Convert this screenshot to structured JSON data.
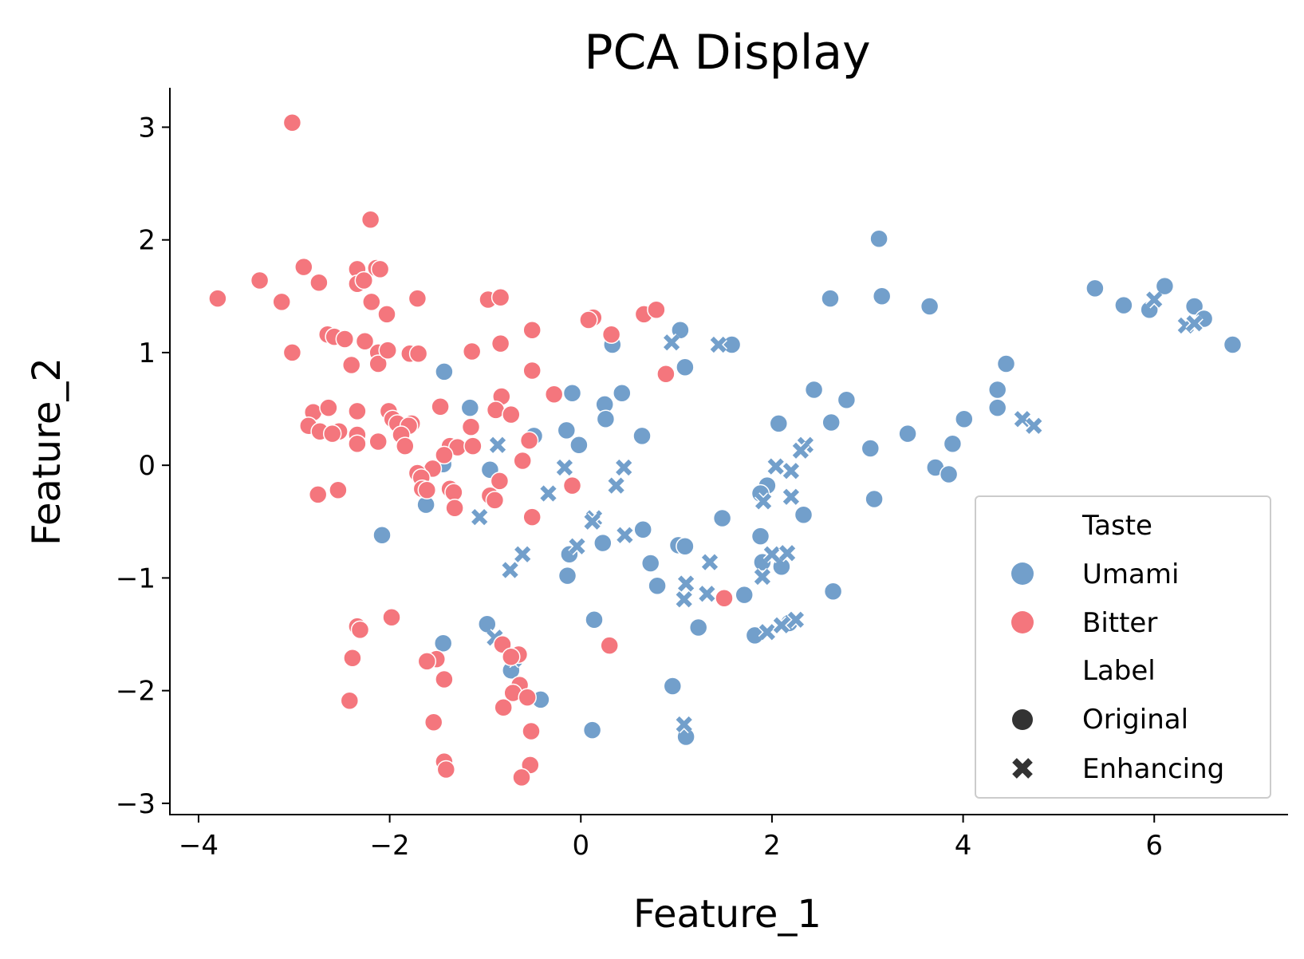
{
  "chart_data": {
    "type": "scatter",
    "title": "PCA Display",
    "xlabel": "Feature_1",
    "ylabel": "Feature_2",
    "xlim": [
      -4.3,
      7.4
    ],
    "ylim": [
      -3.1,
      3.35
    ],
    "x_ticks": [
      {
        "value": -4,
        "label": "−4"
      },
      {
        "value": -2,
        "label": "−2"
      },
      {
        "value": 0,
        "label": "0"
      },
      {
        "value": 2,
        "label": "2"
      },
      {
        "value": 4,
        "label": "4"
      },
      {
        "value": 6,
        "label": "6"
      }
    ],
    "y_ticks": [
      {
        "value": 3,
        "label": "3"
      },
      {
        "value": 2,
        "label": "2"
      },
      {
        "value": 1,
        "label": "1"
      },
      {
        "value": 0,
        "label": "0"
      },
      {
        "value": -1,
        "label": "−1"
      },
      {
        "value": -2,
        "label": "−2"
      },
      {
        "value": -3,
        "label": "−3"
      }
    ],
    "grid": false,
    "legend_position": "lower-right",
    "legend": {
      "hue_title": "Taste",
      "style_title": "Label",
      "hue_entries": [
        {
          "label": "Umami",
          "color": "#729fcb"
        },
        {
          "label": "Bitter",
          "color": "#f4767d"
        }
      ],
      "style_entries": [
        {
          "label": "Original",
          "marker": "circle"
        },
        {
          "label": "Enhancing",
          "marker": "x"
        }
      ]
    },
    "series": [
      {
        "name": "Umami",
        "label": "Original",
        "color": "#729fcb",
        "marker": "circle",
        "points": [
          [
            3.12,
            2.01
          ],
          [
            5.38,
            1.57
          ],
          [
            6.11,
            1.59
          ],
          [
            5.68,
            1.42
          ],
          [
            5.95,
            1.38
          ],
          [
            6.42,
            1.41
          ],
          [
            6.52,
            1.3
          ],
          [
            6.82,
            1.07
          ],
          [
            2.61,
            1.48
          ],
          [
            3.15,
            1.5
          ],
          [
            3.65,
            1.41
          ],
          [
            1.04,
            1.2
          ],
          [
            1.58,
            1.07
          ],
          [
            1.09,
            0.87
          ],
          [
            0.33,
            1.07
          ],
          [
            -1.43,
            0.83
          ],
          [
            -0.09,
            0.64
          ],
          [
            0.43,
            0.64
          ],
          [
            -1.16,
            0.51
          ],
          [
            0.25,
            0.54
          ],
          [
            0.26,
            0.41
          ],
          [
            -0.15,
            0.31
          ],
          [
            -0.02,
            0.18
          ],
          [
            -0.49,
            0.26
          ],
          [
            0.64,
            0.26
          ],
          [
            2.07,
            0.37
          ],
          [
            2.44,
            0.67
          ],
          [
            2.62,
            0.38
          ],
          [
            2.78,
            0.58
          ],
          [
            3.03,
            0.15
          ],
          [
            3.42,
            0.28
          ],
          [
            4.36,
            0.67
          ],
          [
            4.45,
            0.9
          ],
          [
            4.36,
            0.51
          ],
          [
            4.01,
            0.41
          ],
          [
            3.89,
            0.19
          ],
          [
            3.71,
            -0.02
          ],
          [
            3.85,
            -0.08
          ],
          [
            3.07,
            -0.3
          ],
          [
            -1.44,
            0.01
          ],
          [
            -0.95,
            -0.04
          ],
          [
            -1.62,
            -0.35
          ],
          [
            -2.08,
            -0.62
          ],
          [
            1.95,
            -0.18
          ],
          [
            1.88,
            -0.25
          ],
          [
            2.33,
            -0.44
          ],
          [
            1.48,
            -0.47
          ],
          [
            0.65,
            -0.57
          ],
          [
            -0.12,
            -0.79
          ],
          [
            0.23,
            -0.69
          ],
          [
            1.88,
            -0.63
          ],
          [
            1.02,
            -0.71
          ],
          [
            1.09,
            -0.72
          ],
          [
            1.9,
            -0.86
          ],
          [
            2.1,
            -0.9
          ],
          [
            0.73,
            -0.87
          ],
          [
            -0.14,
            -0.98
          ],
          [
            0.8,
            -1.07
          ],
          [
            1.71,
            -1.15
          ],
          [
            0.14,
            -1.37
          ],
          [
            -0.98,
            -1.41
          ],
          [
            1.23,
            -1.44
          ],
          [
            2.64,
            -1.12
          ],
          [
            -1.44,
            -1.58
          ],
          [
            -0.73,
            -1.82
          ],
          [
            -0.42,
            -2.08
          ],
          [
            0.12,
            -2.35
          ],
          [
            0.96,
            -1.96
          ],
          [
            1.1,
            -2.41
          ],
          [
            1.82,
            -1.51
          ],
          [
            2.18,
            -1.4
          ]
        ]
      },
      {
        "name": "Umami",
        "label": "Enhancing",
        "color": "#729fcb",
        "marker": "x",
        "points": [
          [
            0.95,
            1.09
          ],
          [
            1.44,
            1.07
          ],
          [
            6.0,
            1.47
          ],
          [
            6.33,
            1.24
          ],
          [
            6.42,
            1.26
          ],
          [
            4.62,
            0.41
          ],
          [
            4.74,
            0.35
          ],
          [
            -0.87,
            0.18
          ],
          [
            2.35,
            0.18
          ],
          [
            2.3,
            0.13
          ],
          [
            0.45,
            -0.02
          ],
          [
            2.04,
            -0.01
          ],
          [
            -0.17,
            -0.02
          ],
          [
            2.2,
            -0.05
          ],
          [
            0.37,
            -0.18
          ],
          [
            -0.34,
            -0.25
          ],
          [
            2.2,
            -0.28
          ],
          [
            1.91,
            -0.32
          ],
          [
            -1.06,
            -0.46
          ],
          [
            0.14,
            -0.47
          ],
          [
            0.12,
            -0.5
          ],
          [
            0.46,
            -0.62
          ],
          [
            -0.04,
            -0.72
          ],
          [
            -0.61,
            -0.79
          ],
          [
            2.0,
            -0.79
          ],
          [
            2.16,
            -0.78
          ],
          [
            -0.74,
            -0.93
          ],
          [
            1.35,
            -0.86
          ],
          [
            1.9,
            -0.99
          ],
          [
            1.1,
            -1.05
          ],
          [
            1.32,
            -1.14
          ],
          [
            1.08,
            -1.19
          ],
          [
            -0.9,
            -1.53
          ],
          [
            1.95,
            -1.48
          ],
          [
            2.1,
            -1.42
          ],
          [
            2.25,
            -1.37
          ],
          [
            -0.7,
            -1.72
          ],
          [
            1.08,
            -2.3
          ]
        ]
      },
      {
        "name": "Bitter",
        "label": "Original",
        "color": "#f4767d",
        "marker": "circle",
        "points": [
          [
            -3.02,
            3.04
          ],
          [
            -2.2,
            2.18
          ],
          [
            -2.14,
            1.75
          ],
          [
            -2.1,
            1.74
          ],
          [
            -2.34,
            1.74
          ],
          [
            -2.9,
            1.76
          ],
          [
            -3.36,
            1.64
          ],
          [
            -2.74,
            1.62
          ],
          [
            -2.34,
            1.61
          ],
          [
            -2.27,
            1.64
          ],
          [
            -3.8,
            1.48
          ],
          [
            -3.13,
            1.45
          ],
          [
            -2.19,
            1.45
          ],
          [
            -2.03,
            1.34
          ],
          [
            -1.71,
            1.48
          ],
          [
            -0.97,
            1.47
          ],
          [
            -0.84,
            1.49
          ],
          [
            -2.65,
            1.16
          ],
          [
            -2.58,
            1.14
          ],
          [
            -2.47,
            1.12
          ],
          [
            -2.26,
            1.1
          ],
          [
            -2.12,
            1.0
          ],
          [
            -2.12,
            0.9
          ],
          [
            -2.02,
            1.02
          ],
          [
            -1.79,
            0.99
          ],
          [
            -1.7,
            0.99
          ],
          [
            -3.02,
            1.0
          ],
          [
            -2.4,
            0.89
          ],
          [
            -1.14,
            1.01
          ],
          [
            -0.84,
            1.08
          ],
          [
            -0.51,
            1.2
          ],
          [
            0.13,
            1.31
          ],
          [
            0.08,
            1.29
          ],
          [
            0.32,
            1.16
          ],
          [
            0.66,
            1.34
          ],
          [
            0.79,
            1.38
          ],
          [
            -0.51,
            0.84
          ],
          [
            0.89,
            0.81
          ],
          [
            -0.28,
            0.63
          ],
          [
            -2.8,
            0.47
          ],
          [
            -2.64,
            0.51
          ],
          [
            -2.34,
            0.48
          ],
          [
            -2.01,
            0.48
          ],
          [
            -1.97,
            0.41
          ],
          [
            -1.92,
            0.37
          ],
          [
            -1.77,
            0.37
          ],
          [
            -1.8,
            0.35
          ],
          [
            -1.47,
            0.52
          ],
          [
            -0.83,
            0.61
          ],
          [
            -0.89,
            0.49
          ],
          [
            -0.73,
            0.45
          ],
          [
            -2.85,
            0.35
          ],
          [
            -2.73,
            0.3
          ],
          [
            -2.53,
            0.3
          ],
          [
            -2.6,
            0.28
          ],
          [
            -2.34,
            0.27
          ],
          [
            -2.34,
            0.19
          ],
          [
            -2.12,
            0.21
          ],
          [
            -1.88,
            0.27
          ],
          [
            -1.84,
            0.17
          ],
          [
            -1.15,
            0.34
          ],
          [
            -1.37,
            0.17
          ],
          [
            -1.29,
            0.16
          ],
          [
            -1.13,
            0.17
          ],
          [
            -0.54,
            0.22
          ],
          [
            -1.43,
            0.09
          ],
          [
            -1.55,
            -0.03
          ],
          [
            -0.61,
            0.04
          ],
          [
            -1.71,
            -0.07
          ],
          [
            -1.67,
            -0.11
          ],
          [
            -1.66,
            -0.21
          ],
          [
            -1.61,
            -0.22
          ],
          [
            -1.37,
            -0.21
          ],
          [
            -1.33,
            -0.24
          ],
          [
            -0.85,
            -0.14
          ],
          [
            -0.09,
            -0.18
          ],
          [
            -2.75,
            -0.26
          ],
          [
            -2.54,
            -0.22
          ],
          [
            -0.95,
            -0.27
          ],
          [
            -0.9,
            -0.31
          ],
          [
            -1.32,
            -0.38
          ],
          [
            -0.51,
            -0.46
          ],
          [
            1.5,
            -1.18
          ],
          [
            -2.34,
            -1.43
          ],
          [
            -2.31,
            -1.46
          ],
          [
            -1.98,
            -1.35
          ],
          [
            -1.51,
            -1.72
          ],
          [
            -1.61,
            -1.74
          ],
          [
            -2.39,
            -1.71
          ],
          [
            -0.82,
            -1.59
          ],
          [
            -0.65,
            -1.68
          ],
          [
            -0.73,
            -1.7
          ],
          [
            0.3,
            -1.6
          ],
          [
            -1.43,
            -1.9
          ],
          [
            -0.64,
            -1.95
          ],
          [
            -0.71,
            -2.02
          ],
          [
            -0.56,
            -2.06
          ],
          [
            -0.81,
            -2.15
          ],
          [
            -2.42,
            -2.09
          ],
          [
            -1.54,
            -2.28
          ],
          [
            -0.52,
            -2.36
          ],
          [
            -1.43,
            -2.63
          ],
          [
            -1.41,
            -2.7
          ],
          [
            -0.53,
            -2.66
          ],
          [
            -0.62,
            -2.77
          ]
        ]
      }
    ]
  }
}
